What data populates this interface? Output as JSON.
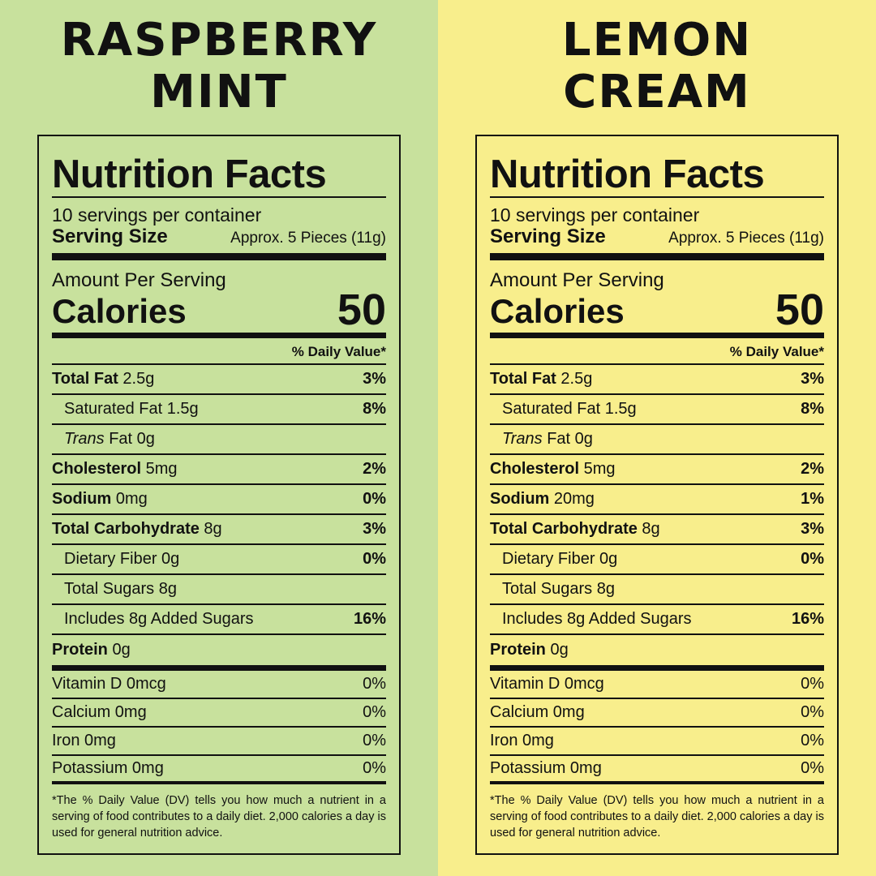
{
  "panels": [
    {
      "title_line1": "RASPBERRY",
      "title_line2": "MINT",
      "bg": "#c8e19d",
      "nf_title": "Nutrition Facts",
      "servings_per_container": "10 servings per container",
      "serving_size_label": "Serving Size",
      "serving_size_value": "Approx. 5 Pieces (11g)",
      "amount_per_serving": "Amount Per Serving",
      "calories_label": "Calories",
      "calories_value": "50",
      "dv_header": "% Daily Value*",
      "total_fat": {
        "label": "Total Fat",
        "amount": " 2.5g",
        "dv": "3%"
      },
      "sat_fat": {
        "label": "Saturated Fat 1.5g",
        "dv": "8%"
      },
      "trans_fat": {
        "italic": "Trans",
        "rest": " Fat 0g",
        "dv": ""
      },
      "cholesterol": {
        "label": "Cholesterol",
        "amount": " 5mg",
        "dv": "2%"
      },
      "sodium": {
        "label": "Sodium",
        "amount": " 0mg",
        "dv": "0%"
      },
      "carb": {
        "label": "Total Carbohydrate",
        "amount": " 8g",
        "dv": "3%"
      },
      "fiber": {
        "label": "Dietary Fiber 0g",
        "dv": "0%"
      },
      "sugars": {
        "label": "Total Sugars 8g",
        "dv": ""
      },
      "added_sugars": {
        "label": "Includes 8g Added Sugars",
        "dv": "16%"
      },
      "protein": {
        "label": "Protein",
        "amount": " 0g",
        "dv": ""
      },
      "vitamin_d": {
        "label": "Vitamin D 0mcg",
        "dv": "0%"
      },
      "calcium": {
        "label": "Calcium 0mg",
        "dv": "0%"
      },
      "iron": {
        "label": "Iron 0mg",
        "dv": "0%"
      },
      "potassium": {
        "label": "Potassium 0mg",
        "dv": "0%"
      },
      "footnote": "*The % Daily Value (DV) tells you how much a nutrient in a serving of food contributes to a daily diet. 2,000 calories a day is used for general nutrition advice."
    },
    {
      "title_line1": "LEMON",
      "title_line2": "CREAM",
      "bg": "#f8ee8c",
      "nf_title": "Nutrition Facts",
      "servings_per_container": "10 servings per container",
      "serving_size_label": "Serving Size",
      "serving_size_value": "Approx. 5 Pieces (11g)",
      "amount_per_serving": "Amount Per Serving",
      "calories_label": "Calories",
      "calories_value": "50",
      "dv_header": "% Daily Value*",
      "total_fat": {
        "label": "Total Fat",
        "amount": " 2.5g",
        "dv": "3%"
      },
      "sat_fat": {
        "label": "Saturated Fat 1.5g",
        "dv": "8%"
      },
      "trans_fat": {
        "italic": "Trans",
        "rest": " Fat 0g",
        "dv": ""
      },
      "cholesterol": {
        "label": "Cholesterol",
        "amount": " 5mg",
        "dv": "2%"
      },
      "sodium": {
        "label": "Sodium",
        "amount": " 20mg",
        "dv": "1%"
      },
      "carb": {
        "label": "Total Carbohydrate",
        "amount": " 8g",
        "dv": "3%"
      },
      "fiber": {
        "label": "Dietary Fiber 0g",
        "dv": "0%"
      },
      "sugars": {
        "label": "Total Sugars 8g",
        "dv": ""
      },
      "added_sugars": {
        "label": "Includes 8g Added Sugars",
        "dv": "16%"
      },
      "protein": {
        "label": "Protein",
        "amount": " 0g",
        "dv": ""
      },
      "vitamin_d": {
        "label": "Vitamin D 0mcg",
        "dv": "0%"
      },
      "calcium": {
        "label": "Calcium 0mg",
        "dv": "0%"
      },
      "iron": {
        "label": "Iron 0mg",
        "dv": "0%"
      },
      "potassium": {
        "label": "Potassium 0mg",
        "dv": "0%"
      },
      "footnote": "*The % Daily Value (DV) tells you how much a nutrient in a serving of food contributes to a daily diet. 2,000 calories a day is used for general nutrition advice."
    }
  ]
}
